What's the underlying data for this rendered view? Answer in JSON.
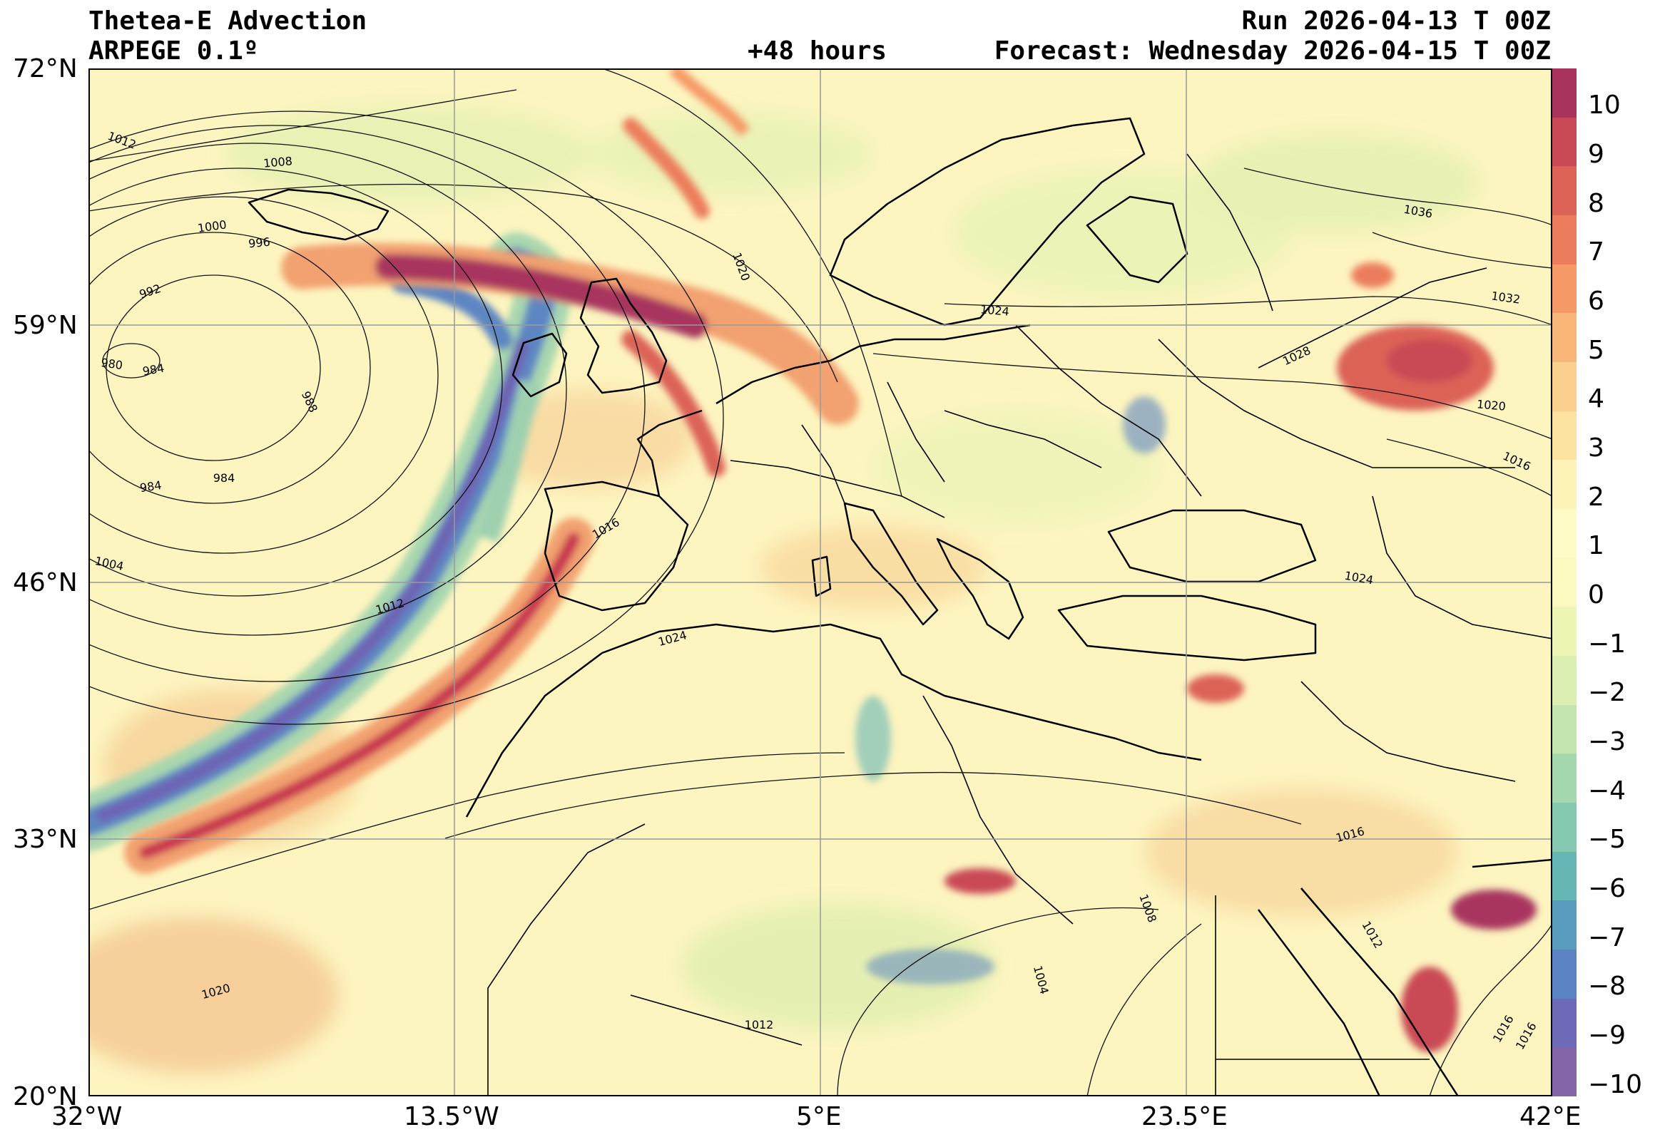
{
  "header": {
    "title": "Thetea-E Advection",
    "model": "ARPEGE 0.1º",
    "lead": "+48 hours",
    "run": "Run 2026-04-13 T 00Z",
    "forecast": "Forecast: Wednesday 2026-04-15 T 00Z"
  },
  "axes": {
    "lon_labels": [
      "32°W",
      "13.5°W",
      "5°E",
      "23.5°E",
      "42°E"
    ],
    "lat_labels": [
      "72°N",
      "59°N",
      "46°N",
      "33°N",
      "20°N"
    ],
    "lon_range": [
      -32,
      42
    ],
    "lat_range": [
      20,
      72
    ],
    "grid": true
  },
  "colorbar": {
    "labels": [
      "10",
      "9",
      "8",
      "7",
      "6",
      "5",
      "4",
      "3",
      "2",
      "1",
      "0",
      "−1",
      "−2",
      "−3",
      "−4",
      "−5",
      "−6",
      "−7",
      "−8",
      "−9",
      "−10"
    ],
    "colors": [
      "#a8345e",
      "#c94a55",
      "#dc6256",
      "#ec7d5c",
      "#f59a66",
      "#f9b679",
      "#fbcf8e",
      "#fde3a2",
      "#fef3b8",
      "#fefbc6",
      "#fbf8c0",
      "#eef6b6",
      "#dcefb2",
      "#c3e5b0",
      "#a5d9ad",
      "#85cab0",
      "#66b6b6",
      "#5a9cbd",
      "#5b82c3",
      "#6f6ab8",
      "#8266a8"
    ]
  },
  "isobars": [
    {
      "label": "1008"
    },
    {
      "label": "1012"
    },
    {
      "label": "1000"
    },
    {
      "label": "996"
    },
    {
      "label": "992"
    },
    {
      "label": "980"
    },
    {
      "label": "984"
    },
    {
      "label": "988"
    },
    {
      "label": "984"
    },
    {
      "label": "984"
    },
    {
      "label": "1004"
    },
    {
      "label": "1012"
    },
    {
      "label": "1016"
    },
    {
      "label": "1020"
    },
    {
      "label": "1024"
    },
    {
      "label": "1024"
    },
    {
      "label": "1028"
    },
    {
      "label": "1032"
    },
    {
      "label": "1036"
    },
    {
      "label": "1020"
    },
    {
      "label": "1016"
    },
    {
      "label": "1024"
    },
    {
      "label": "1016"
    },
    {
      "label": "1012"
    },
    {
      "label": "1008"
    },
    {
      "label": "1004"
    },
    {
      "label": "1012"
    },
    {
      "label": "1020"
    },
    {
      "label": "1016"
    },
    {
      "label": "1016"
    }
  ]
}
